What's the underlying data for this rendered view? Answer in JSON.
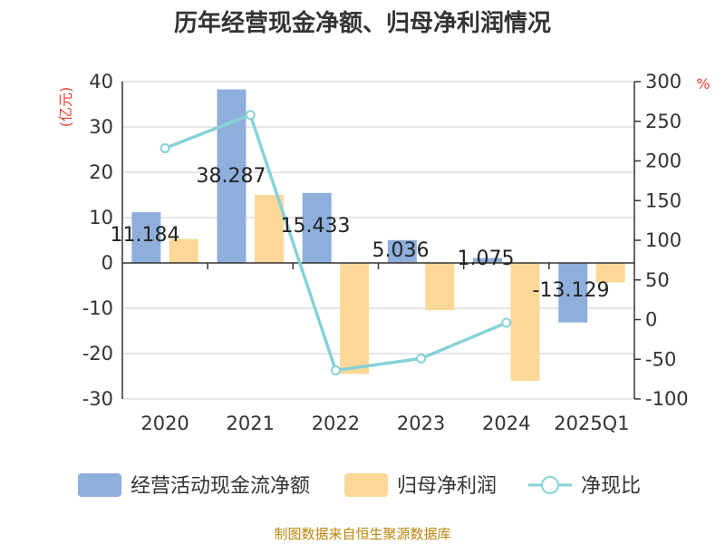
{
  "chart_data": {
    "type": "bar",
    "title": "历年经营现金净额、归母净利润情况",
    "categories": [
      "2020",
      "2021",
      "2022",
      "2023",
      "2024",
      "2025Q1"
    ],
    "left_axis": {
      "unit": "(亿元)",
      "ylim": [
        -30,
        40
      ],
      "ticks": [
        40,
        30,
        20,
        10,
        0,
        -10,
        -20,
        -30
      ]
    },
    "right_axis": {
      "unit": "%",
      "ylim": [
        -100,
        300
      ],
      "ticks": [
        300,
        250,
        200,
        150,
        100,
        50,
        0,
        -50,
        -100
      ]
    },
    "series": [
      {
        "name": "经营活动现金流净额",
        "kind": "bar",
        "axis": "left",
        "color": "#8eaedc",
        "values": [
          11.184,
          38.287,
          15.433,
          5.036,
          1.075,
          -13.129
        ],
        "labels": [
          "11.184",
          "38.287",
          "15.433",
          "5.036",
          "1.075",
          "-13.129"
        ]
      },
      {
        "name": "归母净利润",
        "kind": "bar",
        "axis": "left",
        "color": "#fcd898",
        "values": [
          5.3,
          15.0,
          -24.5,
          -10.4,
          -26.0,
          -4.3
        ]
      },
      {
        "name": "净现比",
        "kind": "line",
        "axis": "right",
        "color": "#86d2d6",
        "values": [
          216,
          258,
          -64,
          -49,
          -4,
          null
        ]
      }
    ],
    "grid": true,
    "legend_position": "bottom"
  },
  "source_note": "制图数据来自恒生聚源数据库"
}
